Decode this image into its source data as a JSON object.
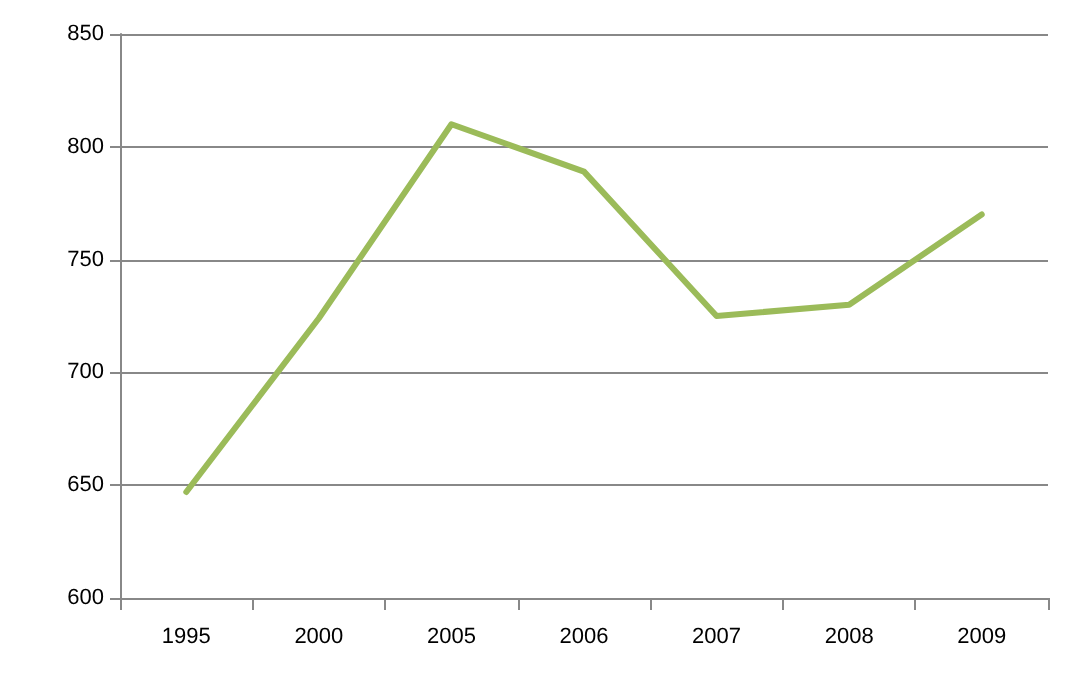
{
  "chart_data": {
    "type": "line",
    "categories": [
      "1995",
      "2000",
      "2005",
      "2006",
      "2007",
      "2008",
      "2009"
    ],
    "series": [
      {
        "color": "#9bbb59",
        "values": [
          647,
          724,
          810,
          789,
          725,
          730,
          770
        ]
      }
    ],
    "ylim": [
      600,
      850
    ],
    "yticks": [
      600,
      650,
      700,
      750,
      800,
      850
    ],
    "grid": "y",
    "marker": "none",
    "line_style": "solid"
  }
}
